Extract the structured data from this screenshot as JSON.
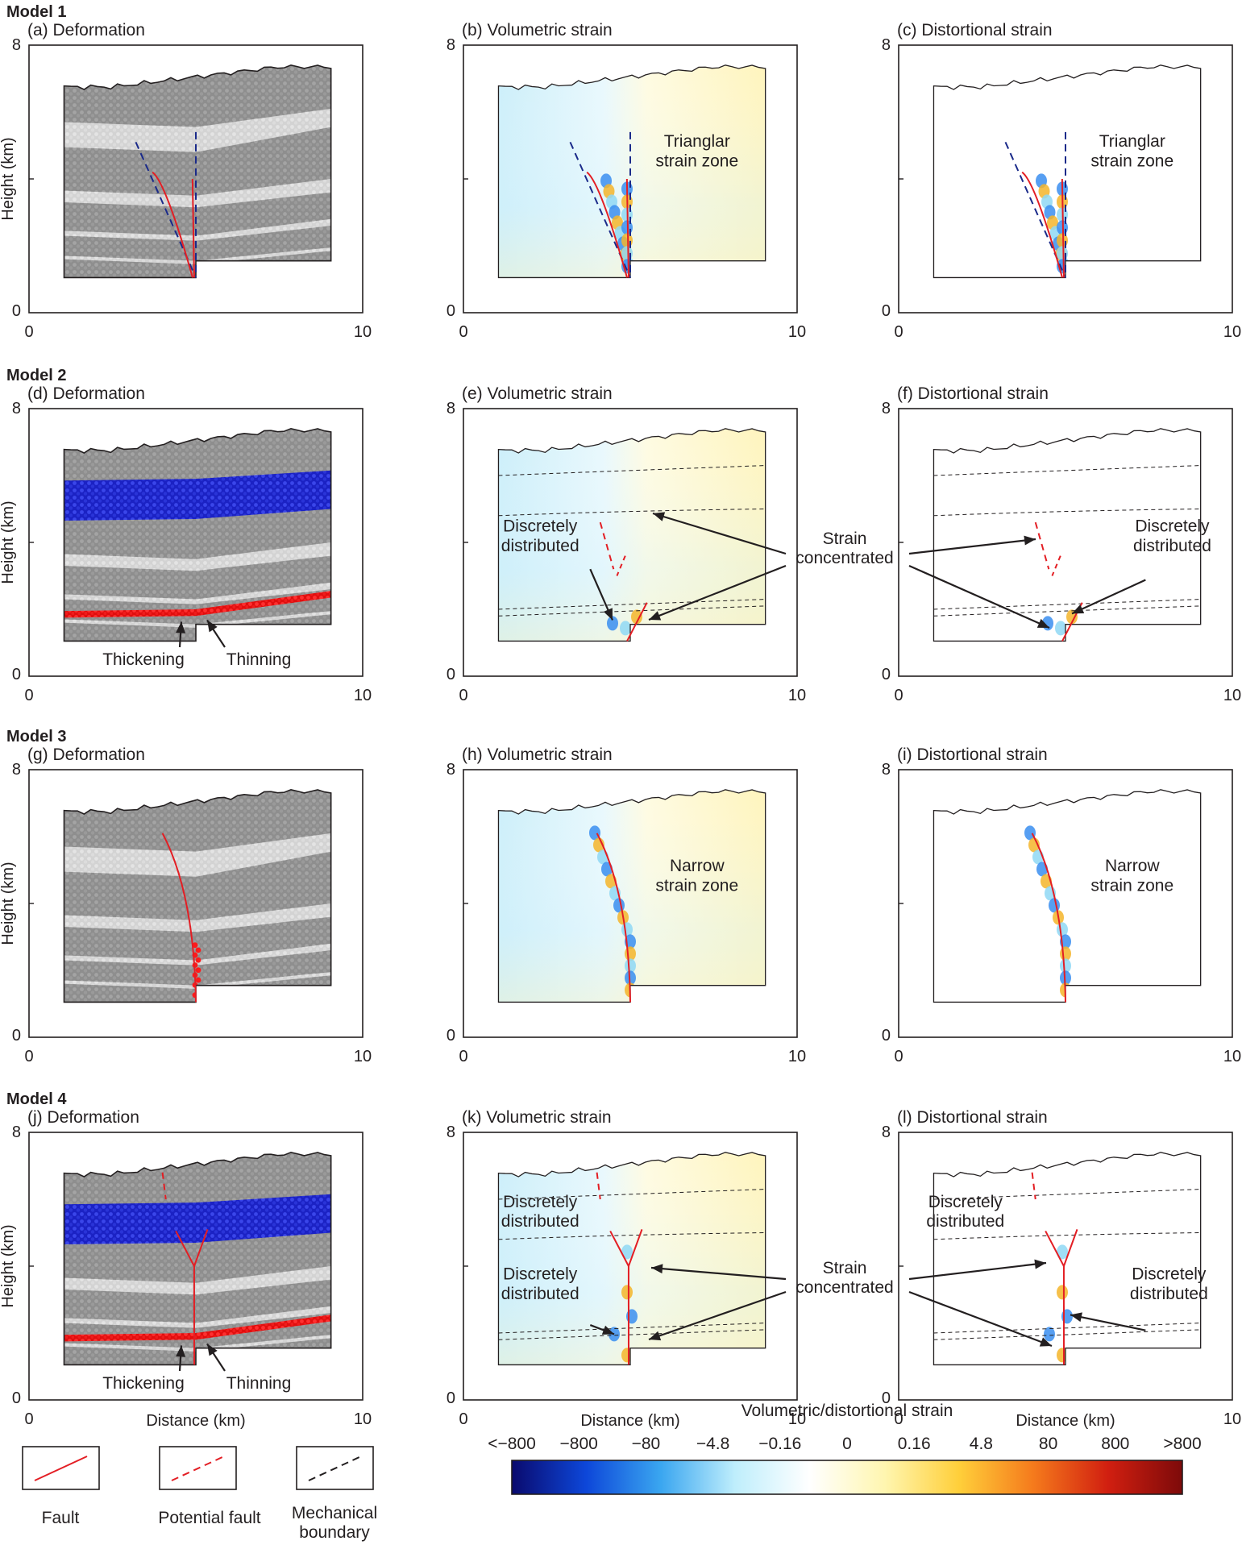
{
  "models": [
    {
      "title": "Model 1",
      "type": 1,
      "ann_narrow": false,
      "panels": [
        {
          "label": "(a) Deformation",
          "kind": "def"
        },
        {
          "label": "(b) Volumetric strain",
          "kind": "vol",
          "note": "Trianglar\nstrain zone"
        },
        {
          "label": "(c) Distortional strain",
          "kind": "dis",
          "note": "Trianglar\nstrain zone"
        }
      ]
    },
    {
      "title": "Model 2",
      "type": 2,
      "panels": [
        {
          "label": "(d) Deformation",
          "kind": "def",
          "left_note": "Thickening",
          "right_note": "Thinning"
        },
        {
          "label": "(e) Volumetric strain",
          "kind": "vol",
          "note": "Discretely\ndistributed"
        },
        {
          "label": "(f) Distortional strain",
          "kind": "dis",
          "note": "Discretely\ndistributed"
        }
      ]
    },
    {
      "title": "Model 3",
      "type": 3,
      "panels": [
        {
          "label": "(g) Deformation",
          "kind": "def"
        },
        {
          "label": "(h) Volumetric strain",
          "kind": "vol",
          "note": "Narrow\nstrain zone"
        },
        {
          "label": "(i) Distortional strain",
          "kind": "dis",
          "note": "Narrow\nstrain zone"
        }
      ]
    },
    {
      "title": "Model 4",
      "type": 4,
      "panels": [
        {
          "label": "(j) Deformation",
          "kind": "def",
          "left_note": "Thickening",
          "right_note": "Thinning"
        },
        {
          "label": "(k) Volumetric strain",
          "kind": "vol",
          "note": "Discretely\ndistributed",
          "note2": "Discretely\ndistributed"
        },
        {
          "label": "(l) Distortional strain",
          "kind": "dis",
          "note": "Discretely\ndistributed",
          "note2": "Discretely\ndistributed"
        }
      ]
    }
  ],
  "shared_annotations": {
    "strain_concentrated": "Strain\nconcentrated"
  },
  "axes": {
    "ylabel": "Height (km)",
    "xlabel": "Distance (km)",
    "xlim": [
      0,
      10
    ],
    "ylim": [
      0,
      8
    ],
    "xticks": [
      "0",
      "10"
    ],
    "yticks": [
      "0",
      "8"
    ]
  },
  "legend": [
    {
      "name": "Fault",
      "style": "solid",
      "color": "#e31e24"
    },
    {
      "name": "Potential fault",
      "style": "dashed",
      "color": "#e31e24"
    },
    {
      "name": "Mechanical\nboundary",
      "style": "dashed",
      "color": "#231f20"
    }
  ],
  "colorbar": {
    "title": "Volumetric/distortional strain",
    "ticks": [
      "<−800",
      "−800",
      "−80",
      "−4.8",
      "−0.16",
      "0",
      "0.16",
      "4.8",
      "80",
      "800",
      ">800"
    ],
    "colors": [
      "#0a0a6e",
      "#0d47d9",
      "#3aa6f0",
      "#bfeefc",
      "#ffffff",
      "#fff6b0",
      "#ffcf3a",
      "#f57a1c",
      "#d11f10",
      "#7d0a0a"
    ]
  },
  "colors": {
    "particle_dark": "#8f8f8f",
    "particle_light": "#d6d6d6",
    "weak_layer": "#ff1a1a",
    "strong_layer": "#1e28d2",
    "fault": "#e31e24",
    "potential_fault_blue": "#1a2a8a"
  }
}
